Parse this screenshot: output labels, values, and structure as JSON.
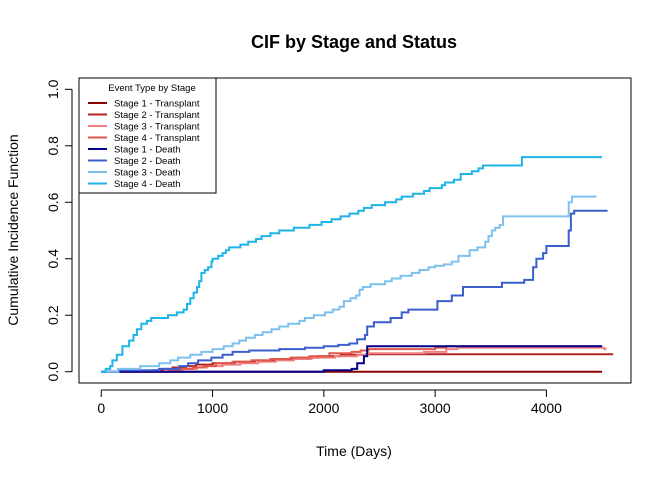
{
  "chart_data": {
    "type": "line",
    "step": true,
    "title": "CIF by Stage and Status",
    "xlabel": "Time (Days)",
    "ylabel": "Cumulative Incidence Function",
    "xlim": [
      -200,
      4760
    ],
    "ylim": [
      -0.04,
      1.04
    ],
    "xticks": [
      0,
      1000,
      2000,
      3000,
      4000
    ],
    "yticks": [
      0.0,
      0.2,
      0.4,
      0.6,
      0.8,
      1.0
    ],
    "xtick_labels": [
      "0",
      "1000",
      "2000",
      "3000",
      "4000"
    ],
    "ytick_labels": [
      "0.0",
      "0.2",
      "0.4",
      "0.6",
      "0.8",
      "1.0"
    ],
    "legend": {
      "title": "Event Type by Stage",
      "position": "top-left"
    },
    "series": [
      {
        "name": "Stage 1 - Transplant",
        "color": "#8B0000",
        "points": [
          [
            0,
            0
          ],
          [
            1070,
            0
          ],
          [
            4500,
            0
          ]
        ]
      },
      {
        "name": "Stage 2 - Transplant",
        "color": "#B22222",
        "points": [
          [
            0,
            0
          ],
          [
            380,
            0
          ],
          [
            470,
            0.005
          ],
          [
            560,
            0.01
          ],
          [
            640,
            0.015
          ],
          [
            760,
            0.02
          ],
          [
            850,
            0.025
          ],
          [
            1000,
            0.03
          ],
          [
            1200,
            0.035
          ],
          [
            1380,
            0.04
          ],
          [
            1570,
            0.045
          ],
          [
            1760,
            0.05
          ],
          [
            1950,
            0.055
          ],
          [
            2150,
            0.06
          ],
          [
            2380,
            0.062
          ],
          [
            4600,
            0.062
          ]
        ]
      },
      {
        "name": "Stage 3 - Transplant",
        "color": "#F08080",
        "points": [
          [
            0,
            0
          ],
          [
            130,
            0
          ],
          [
            500,
            0
          ],
          [
            600,
            0.005
          ],
          [
            730,
            0.01
          ],
          [
            860,
            0.015
          ],
          [
            950,
            0.02
          ],
          [
            1090,
            0.025
          ],
          [
            1250,
            0.03
          ],
          [
            1410,
            0.035
          ],
          [
            1570,
            0.04
          ],
          [
            1730,
            0.045
          ],
          [
            1890,
            0.05
          ],
          [
            2100,
            0.055
          ],
          [
            2300,
            0.06
          ],
          [
            2400,
            0.065
          ],
          [
            2900,
            0.07
          ],
          [
            3100,
            0.08
          ],
          [
            3200,
            0.085
          ],
          [
            4500,
            0.085
          ],
          [
            4520,
            0.08
          ],
          [
            4540,
            0.08
          ]
        ]
      },
      {
        "name": "Stage 4 - Transplant",
        "color": "#E2574C",
        "points": [
          [
            0,
            0
          ],
          [
            110,
            0
          ],
          [
            520,
            0
          ],
          [
            610,
            0.005
          ],
          [
            710,
            0.01
          ],
          [
            820,
            0.015
          ],
          [
            920,
            0.02
          ],
          [
            1030,
            0.03
          ],
          [
            1180,
            0.035
          ],
          [
            1350,
            0.04
          ],
          [
            1520,
            0.045
          ],
          [
            1700,
            0.05
          ],
          [
            1870,
            0.055
          ],
          [
            2050,
            0.065
          ],
          [
            2250,
            0.07
          ],
          [
            2330,
            0.075
          ],
          [
            2400,
            0.08
          ],
          [
            3000,
            0.085
          ],
          [
            3100,
            0.09
          ],
          [
            4500,
            0.09
          ]
        ]
      },
      {
        "name": "Stage 1 - Death",
        "color": "#00008B",
        "points": [
          [
            0,
            0
          ],
          [
            1950,
            0
          ],
          [
            2000,
            0.005
          ],
          [
            2250,
            0.01
          ],
          [
            2300,
            0.03
          ],
          [
            2360,
            0.055
          ],
          [
            2390,
            0.09
          ],
          [
            4500,
            0.09
          ]
        ]
      },
      {
        "name": "Stage 2 - Death",
        "color": "#3A5FCD",
        "points": [
          [
            0,
            0
          ],
          [
            160,
            0.005
          ],
          [
            520,
            0.01
          ],
          [
            700,
            0.02
          ],
          [
            780,
            0.03
          ],
          [
            870,
            0.04
          ],
          [
            990,
            0.05
          ],
          [
            1090,
            0.06
          ],
          [
            1180,
            0.07
          ],
          [
            1330,
            0.075
          ],
          [
            1600,
            0.08
          ],
          [
            1830,
            0.085
          ],
          [
            2000,
            0.09
          ],
          [
            2130,
            0.095
          ],
          [
            2230,
            0.1
          ],
          [
            2300,
            0.115
          ],
          [
            2370,
            0.13
          ],
          [
            2390,
            0.16
          ],
          [
            2450,
            0.175
          ],
          [
            2600,
            0.19
          ],
          [
            2700,
            0.21
          ],
          [
            2760,
            0.22
          ],
          [
            3020,
            0.25
          ],
          [
            3150,
            0.27
          ],
          [
            3250,
            0.3
          ],
          [
            3600,
            0.315
          ],
          [
            3800,
            0.325
          ],
          [
            3880,
            0.37
          ],
          [
            3910,
            0.4
          ],
          [
            3970,
            0.42
          ],
          [
            4000,
            0.445
          ],
          [
            4200,
            0.5
          ],
          [
            4220,
            0.56
          ],
          [
            4250,
            0.57
          ],
          [
            4550,
            0.57
          ]
        ]
      },
      {
        "name": "Stage 3 - Death",
        "color": "#7EC0EE",
        "points": [
          [
            0,
            0
          ],
          [
            150,
            0.01
          ],
          [
            350,
            0.02
          ],
          [
            520,
            0.03
          ],
          [
            620,
            0.04
          ],
          [
            690,
            0.05
          ],
          [
            800,
            0.06
          ],
          [
            900,
            0.07
          ],
          [
            1000,
            0.08
          ],
          [
            1100,
            0.09
          ],
          [
            1180,
            0.1
          ],
          [
            1240,
            0.11
          ],
          [
            1300,
            0.12
          ],
          [
            1380,
            0.13
          ],
          [
            1450,
            0.14
          ],
          [
            1530,
            0.15
          ],
          [
            1600,
            0.16
          ],
          [
            1680,
            0.17
          ],
          [
            1780,
            0.18
          ],
          [
            1830,
            0.19
          ],
          [
            1910,
            0.2
          ],
          [
            2010,
            0.21
          ],
          [
            2080,
            0.22
          ],
          [
            2140,
            0.23
          ],
          [
            2180,
            0.25
          ],
          [
            2240,
            0.26
          ],
          [
            2290,
            0.27
          ],
          [
            2320,
            0.29
          ],
          [
            2350,
            0.3
          ],
          [
            2420,
            0.31
          ],
          [
            2550,
            0.32
          ],
          [
            2610,
            0.33
          ],
          [
            2690,
            0.34
          ],
          [
            2790,
            0.35
          ],
          [
            2860,
            0.36
          ],
          [
            2940,
            0.37
          ],
          [
            3000,
            0.375
          ],
          [
            3080,
            0.38
          ],
          [
            3150,
            0.39
          ],
          [
            3210,
            0.41
          ],
          [
            3310,
            0.43
          ],
          [
            3380,
            0.44
          ],
          [
            3450,
            0.46
          ],
          [
            3480,
            0.48
          ],
          [
            3510,
            0.5
          ],
          [
            3540,
            0.51
          ],
          [
            3580,
            0.52
          ],
          [
            3610,
            0.55
          ],
          [
            3700,
            0.55
          ],
          [
            3800,
            0.55
          ],
          [
            4000,
            0.55
          ],
          [
            4170,
            0.55
          ],
          [
            4200,
            0.6
          ],
          [
            4230,
            0.62
          ],
          [
            4450,
            0.62
          ]
        ]
      },
      {
        "name": "Stage 4 - Death",
        "color": "#1EB4E8",
        "points": [
          [
            0,
            0
          ],
          [
            40,
            0.01
          ],
          [
            80,
            0.02
          ],
          [
            100,
            0.04
          ],
          [
            140,
            0.06
          ],
          [
            190,
            0.09
          ],
          [
            250,
            0.11
          ],
          [
            290,
            0.13
          ],
          [
            320,
            0.15
          ],
          [
            360,
            0.17
          ],
          [
            410,
            0.18
          ],
          [
            450,
            0.19
          ],
          [
            600,
            0.2
          ],
          [
            680,
            0.21
          ],
          [
            740,
            0.22
          ],
          [
            770,
            0.24
          ],
          [
            800,
            0.26
          ],
          [
            830,
            0.28
          ],
          [
            860,
            0.3
          ],
          [
            880,
            0.32
          ],
          [
            900,
            0.35
          ],
          [
            930,
            0.36
          ],
          [
            960,
            0.37
          ],
          [
            990,
            0.39
          ],
          [
            1000,
            0.4
          ],
          [
            1050,
            0.41
          ],
          [
            1090,
            0.42
          ],
          [
            1120,
            0.43
          ],
          [
            1150,
            0.44
          ],
          [
            1250,
            0.45
          ],
          [
            1320,
            0.46
          ],
          [
            1390,
            0.47
          ],
          [
            1440,
            0.48
          ],
          [
            1520,
            0.49
          ],
          [
            1600,
            0.5
          ],
          [
            1730,
            0.51
          ],
          [
            1870,
            0.52
          ],
          [
            1980,
            0.53
          ],
          [
            2070,
            0.54
          ],
          [
            2150,
            0.55
          ],
          [
            2230,
            0.56
          ],
          [
            2310,
            0.57
          ],
          [
            2360,
            0.58
          ],
          [
            2430,
            0.59
          ],
          [
            2550,
            0.6
          ],
          [
            2650,
            0.61
          ],
          [
            2700,
            0.62
          ],
          [
            2800,
            0.63
          ],
          [
            2900,
            0.64
          ],
          [
            2950,
            0.65
          ],
          [
            3060,
            0.66
          ],
          [
            3090,
            0.67
          ],
          [
            3170,
            0.68
          ],
          [
            3230,
            0.7
          ],
          [
            3330,
            0.71
          ],
          [
            3390,
            0.72
          ],
          [
            3430,
            0.73
          ],
          [
            3760,
            0.73
          ],
          [
            3780,
            0.76
          ],
          [
            4500,
            0.76
          ]
        ]
      }
    ]
  }
}
